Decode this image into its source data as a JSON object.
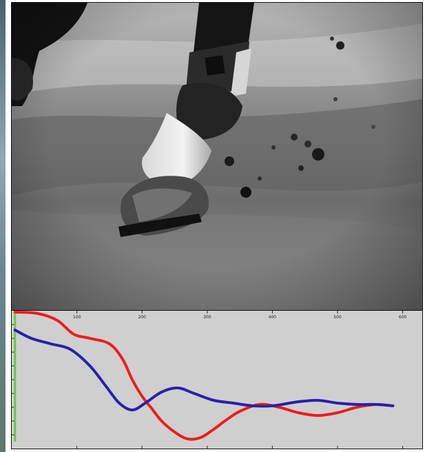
{
  "chart_data": {
    "type": "line",
    "title": "",
    "xlabel": "",
    "ylabel": "",
    "x_ticks": [
      100,
      200,
      300,
      400,
      500,
      600
    ],
    "xlim": [
      0,
      630
    ],
    "ylim": [
      0,
      10
    ],
    "grid": false,
    "legend": "none",
    "series": [
      {
        "color": "#ee1c1c",
        "x": [
          5,
          40,
          70,
          95,
          120,
          150,
          170,
          185,
          200,
          215,
          230,
          250,
          270,
          290,
          310,
          330,
          350,
          380,
          410,
          440,
          470,
          500,
          530,
          560,
          585
        ],
        "y": [
          9.9,
          9.8,
          9.3,
          8.3,
          8.0,
          7.6,
          6.5,
          5.0,
          3.8,
          2.9,
          2.0,
          1.2,
          0.7,
          0.8,
          1.4,
          2.1,
          2.7,
          3.2,
          3.0,
          2.6,
          2.4,
          2.6,
          3.0,
          3.2,
          3.1
        ]
      },
      {
        "color": "#2b1faa",
        "x": [
          5,
          30,
          60,
          90,
          120,
          145,
          165,
          185,
          205,
          230,
          255,
          280,
          310,
          340,
          370,
          400,
          440,
          470,
          500,
          530,
          560,
          585
        ],
        "y": [
          8.6,
          8.0,
          7.6,
          7.2,
          6.0,
          4.5,
          3.3,
          2.8,
          3.3,
          4.1,
          4.4,
          4.0,
          3.5,
          3.3,
          3.1,
          3.1,
          3.4,
          3.5,
          3.3,
          3.2,
          3.2,
          3.1
        ]
      }
    ],
    "vertical_marker": {
      "color": "#5ecf3a",
      "x": 5
    }
  }
}
